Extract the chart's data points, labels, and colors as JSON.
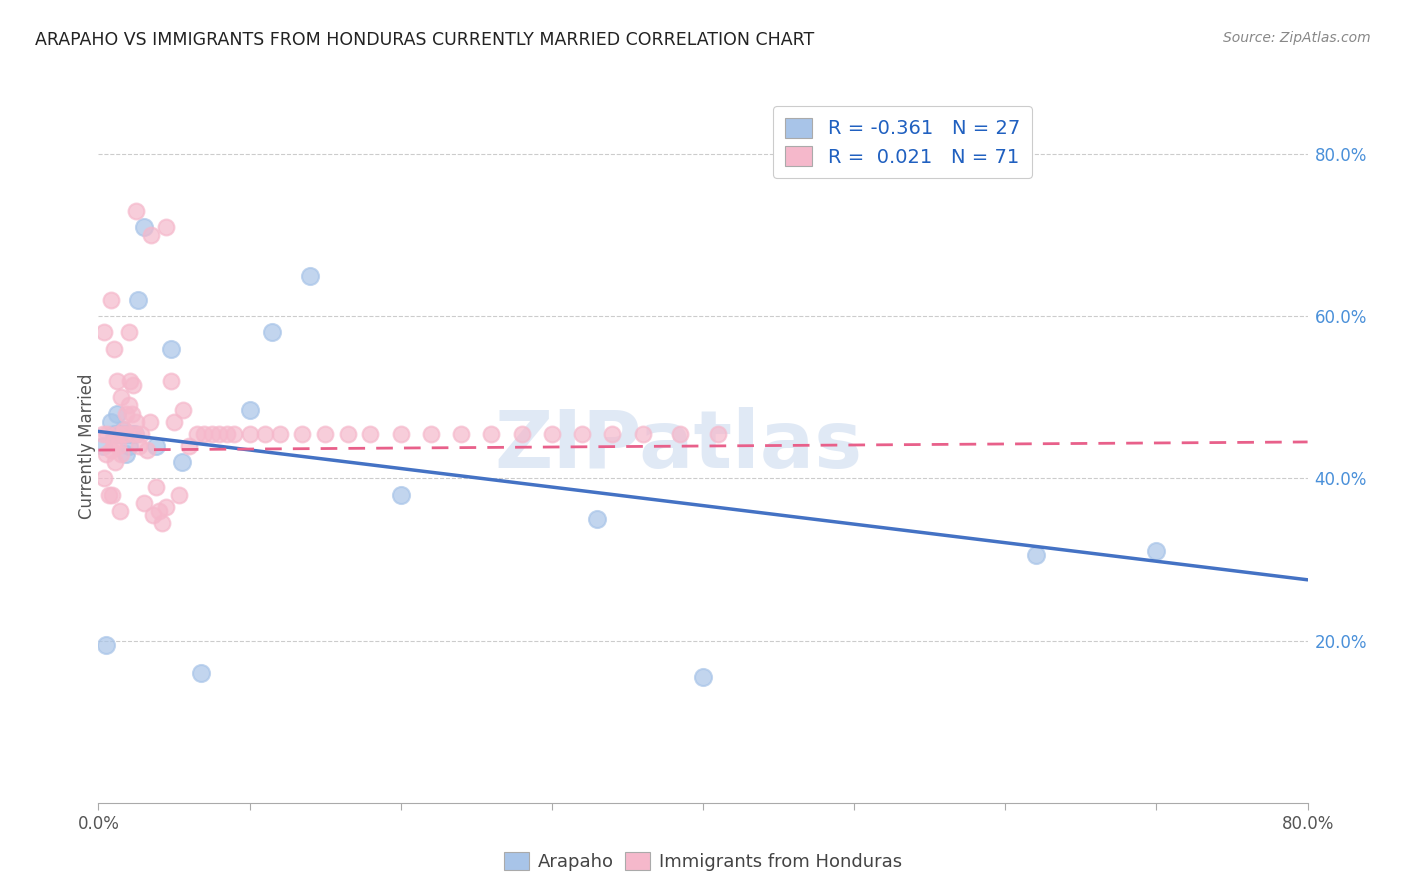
{
  "title": "ARAPAHO VS IMMIGRANTS FROM HONDURAS CURRENTLY MARRIED CORRELATION CHART",
  "source": "Source: ZipAtlas.com",
  "ylabel": "Currently Married",
  "xlim": [
    0.0,
    0.8
  ],
  "ylim": [
    0.0,
    0.88
  ],
  "y_ticks_right": [
    0.2,
    0.4,
    0.6,
    0.8
  ],
  "y_tick_labels_right": [
    "20.0%",
    "40.0%",
    "60.0%",
    "80.0%"
  ],
  "arapaho_color": "#a8c4e8",
  "honduras_color": "#f5b8cb",
  "arapaho_line_color": "#4472c4",
  "honduras_line_color": "#e8608a",
  "legend_R_arapaho": "-0.361",
  "legend_N_arapaho": "27",
  "legend_R_honduras": "0.021",
  "legend_N_honduras": "71",
  "watermark": "ZIPatlas",
  "arapaho_x": [
    0.003,
    0.008,
    0.01,
    0.012,
    0.013,
    0.015,
    0.016,
    0.018,
    0.019,
    0.02,
    0.022,
    0.024,
    0.026,
    0.03,
    0.038,
    0.048,
    0.055,
    0.068,
    0.1,
    0.115,
    0.14,
    0.2,
    0.33,
    0.4,
    0.62,
    0.7,
    0.005
  ],
  "arapaho_y": [
    0.44,
    0.47,
    0.455,
    0.48,
    0.455,
    0.455,
    0.46,
    0.43,
    0.455,
    0.44,
    0.455,
    0.455,
    0.62,
    0.71,
    0.44,
    0.56,
    0.42,
    0.16,
    0.485,
    0.58,
    0.65,
    0.38,
    0.35,
    0.155,
    0.305,
    0.31,
    0.195
  ],
  "honduras_x": [
    0.003,
    0.005,
    0.006,
    0.007,
    0.008,
    0.009,
    0.01,
    0.011,
    0.012,
    0.013,
    0.014,
    0.015,
    0.016,
    0.017,
    0.018,
    0.019,
    0.02,
    0.021,
    0.022,
    0.023,
    0.024,
    0.025,
    0.027,
    0.028,
    0.03,
    0.032,
    0.034,
    0.036,
    0.038,
    0.04,
    0.042,
    0.045,
    0.048,
    0.05,
    0.053,
    0.056,
    0.06,
    0.065,
    0.07,
    0.075,
    0.08,
    0.085,
    0.09,
    0.1,
    0.11,
    0.12,
    0.135,
    0.15,
    0.165,
    0.18,
    0.2,
    0.22,
    0.24,
    0.26,
    0.28,
    0.3,
    0.32,
    0.34,
    0.36,
    0.385,
    0.41,
    0.004,
    0.004,
    0.008,
    0.01,
    0.012,
    0.015,
    0.02,
    0.025,
    0.035,
    0.045
  ],
  "honduras_y": [
    0.455,
    0.43,
    0.455,
    0.38,
    0.435,
    0.38,
    0.445,
    0.42,
    0.455,
    0.44,
    0.36,
    0.43,
    0.455,
    0.46,
    0.48,
    0.455,
    0.58,
    0.52,
    0.48,
    0.515,
    0.455,
    0.47,
    0.44,
    0.455,
    0.37,
    0.435,
    0.47,
    0.355,
    0.39,
    0.36,
    0.345,
    0.365,
    0.52,
    0.47,
    0.38,
    0.485,
    0.44,
    0.455,
    0.455,
    0.455,
    0.455,
    0.455,
    0.455,
    0.455,
    0.455,
    0.455,
    0.455,
    0.455,
    0.455,
    0.455,
    0.455,
    0.455,
    0.455,
    0.455,
    0.455,
    0.455,
    0.455,
    0.455,
    0.455,
    0.455,
    0.455,
    0.4,
    0.58,
    0.62,
    0.56,
    0.52,
    0.5,
    0.49,
    0.73,
    0.7,
    0.71
  ],
  "arapaho_line_x": [
    0.0,
    0.8
  ],
  "arapaho_line_y": [
    0.458,
    0.275
  ],
  "honduras_line_x": [
    0.0,
    0.8
  ],
  "honduras_line_y": [
    0.435,
    0.445
  ]
}
